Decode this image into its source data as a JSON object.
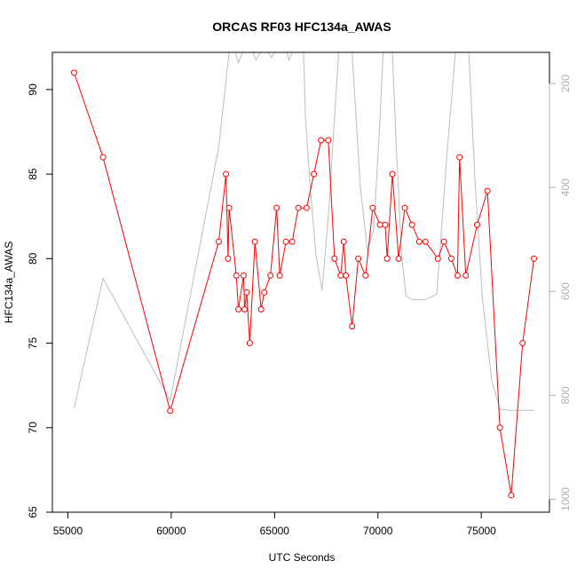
{
  "chart_data": {
    "type": "line",
    "title": "ORCAS RF03 HFC134a_AWAS",
    "xlabel": "UTC Seconds",
    "ylabel": "HFC134a_AWAS",
    "xlim": [
      54250,
      78300
    ],
    "ylim": [
      65,
      92.2
    ],
    "x_ticks": [
      "55000",
      "60000",
      "65000",
      "70000",
      "75000"
    ],
    "y_ticks": [
      "65",
      "70",
      "75",
      "80",
      "85",
      "90"
    ],
    "y2_ticks": [
      "200",
      "400",
      "600",
      "800",
      "1000"
    ],
    "y2lim": [
      1025,
      140
    ],
    "grid": false,
    "colors": {
      "series": "#ff0000",
      "secondary": "#bebebe"
    },
    "series": [
      {
        "values": [
          [
            55300,
            91
          ],
          [
            56700,
            86
          ],
          [
            59950,
            71
          ],
          [
            62300,
            81
          ],
          [
            62650,
            85
          ],
          [
            62750,
            80
          ],
          [
            62800,
            83
          ],
          [
            63150,
            79
          ],
          [
            63250,
            77
          ],
          [
            63500,
            79
          ],
          [
            63550,
            77
          ],
          [
            63650,
            78
          ],
          [
            63800,
            75
          ],
          [
            64050,
            81
          ],
          [
            64350,
            77
          ],
          [
            64500,
            78
          ],
          [
            64800,
            79
          ],
          [
            65100,
            83
          ],
          [
            65250,
            79
          ],
          [
            65550,
            81
          ],
          [
            65850,
            81
          ],
          [
            66150,
            83
          ],
          [
            66550,
            83
          ],
          [
            66900,
            85
          ],
          [
            67250,
            87
          ],
          [
            67600,
            87
          ],
          [
            67900,
            80
          ],
          [
            68200,
            79
          ],
          [
            68350,
            81
          ],
          [
            68450,
            79
          ],
          [
            68750,
            76
          ],
          [
            69050,
            80
          ],
          [
            69400,
            79
          ],
          [
            69750,
            83
          ],
          [
            70100,
            82
          ],
          [
            70350,
            82
          ],
          [
            70450,
            80
          ],
          [
            70700,
            85
          ],
          [
            71000,
            80
          ],
          [
            71300,
            83
          ],
          [
            71650,
            82
          ],
          [
            72000,
            81
          ],
          [
            72300,
            81
          ],
          [
            72900,
            80
          ],
          [
            73200,
            81
          ],
          [
            73550,
            80
          ],
          [
            73850,
            79
          ],
          [
            73950,
            86
          ],
          [
            74250,
            79
          ],
          [
            74800,
            82
          ],
          [
            75300,
            84
          ],
          [
            75900,
            70
          ],
          [
            76450,
            66
          ],
          [
            77000,
            75
          ],
          [
            77550,
            80
          ]
        ]
      },
      {
        "axis": "right",
        "values": [
          [
            55300,
            825
          ],
          [
            56700,
            575
          ],
          [
            59950,
            810
          ],
          [
            62300,
            322
          ],
          [
            62800,
            140
          ],
          [
            63100,
            140
          ],
          [
            63250,
            160
          ],
          [
            63450,
            140
          ],
          [
            63950,
            140
          ],
          [
            64100,
            155
          ],
          [
            64300,
            140
          ],
          [
            64700,
            140
          ],
          [
            64850,
            150
          ],
          [
            65000,
            140
          ],
          [
            65600,
            140
          ],
          [
            65700,
            155
          ],
          [
            65850,
            140
          ],
          [
            66400,
            140
          ],
          [
            66500,
            270
          ],
          [
            66700,
            385
          ],
          [
            67000,
            530
          ],
          [
            67300,
            598
          ],
          [
            67650,
            430
          ],
          [
            67900,
            265
          ],
          [
            68100,
            140
          ],
          [
            68750,
            140
          ],
          [
            69150,
            400
          ],
          [
            69500,
            523
          ],
          [
            69800,
            480
          ],
          [
            70100,
            270
          ],
          [
            70250,
            140
          ],
          [
            70700,
            140
          ],
          [
            70900,
            330
          ],
          [
            71150,
            530
          ],
          [
            71350,
            608
          ],
          [
            71650,
            616
          ],
          [
            72300,
            616
          ],
          [
            72850,
            605
          ],
          [
            73350,
            330
          ],
          [
            73750,
            140
          ],
          [
            74400,
            140
          ],
          [
            74700,
            390
          ],
          [
            75050,
            610
          ],
          [
            75500,
            770
          ],
          [
            75900,
            827
          ],
          [
            76450,
            829
          ],
          [
            77550,
            829
          ]
        ]
      }
    ]
  }
}
